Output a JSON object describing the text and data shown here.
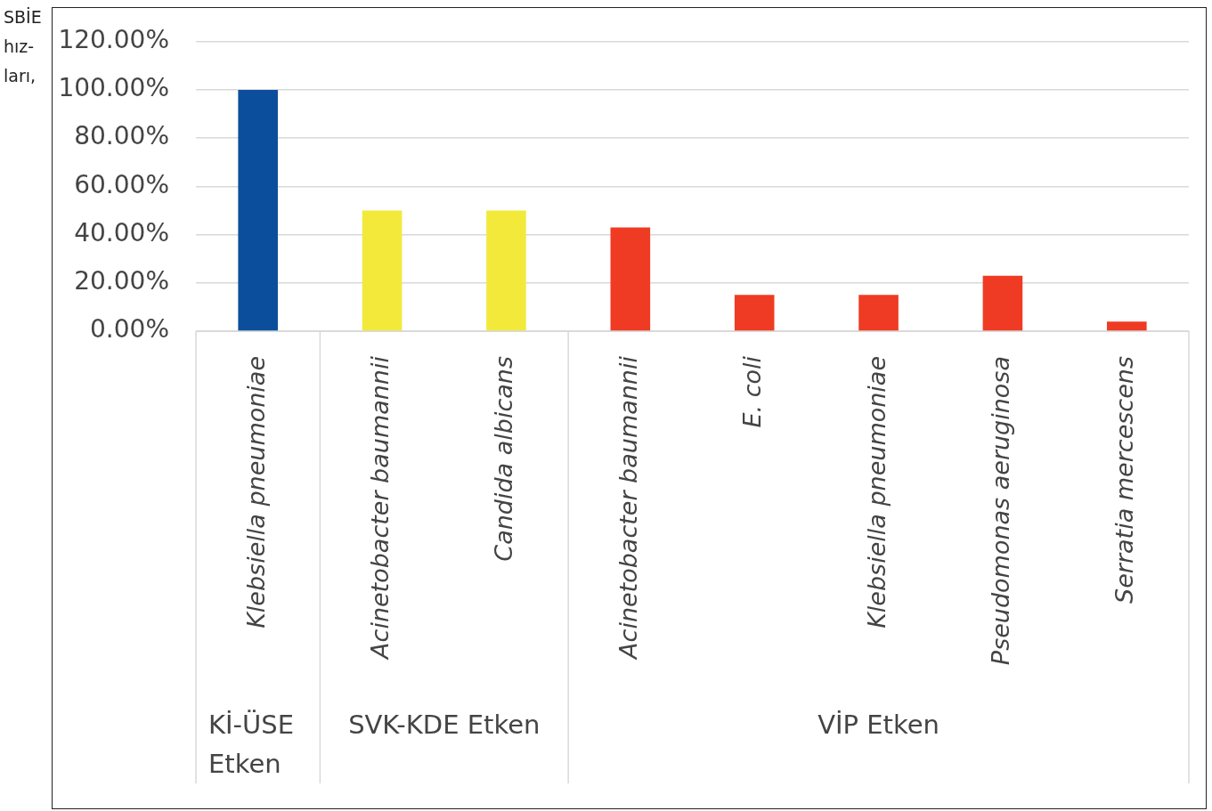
{
  "chart_data": {
    "type": "bar",
    "categories": [
      "Klebsiella pneumoniae",
      "Acinetobacter baumannii",
      "Candida albicans",
      "Acinetobacter baumannii",
      "E. coli",
      "Klebsiella pneumoniae",
      "Pseudomonas aeruginosa",
      "Serratia mercescens"
    ],
    "values": [
      100,
      50,
      50,
      43,
      15,
      15,
      23,
      4
    ],
    "colors": [
      "#0b4f9c",
      "#f2e93b",
      "#f2e93b",
      "#ef3b23",
      "#ef3b23",
      "#ef3b23",
      "#ef3b23",
      "#ef3b23"
    ],
    "ylim": [
      0,
      120
    ],
    "yticks": [
      {
        "value": 0,
        "label": "0.00%"
      },
      {
        "value": 20,
        "label": "20.00%"
      },
      {
        "value": 40,
        "label": "40.00%"
      },
      {
        "value": 60,
        "label": "60.00%"
      },
      {
        "value": 80,
        "label": "80.00%"
      },
      {
        "value": 100,
        "label": "100.00%"
      },
      {
        "value": 120,
        "label": "120.00%"
      }
    ],
    "grid": "y",
    "legend": false,
    "annotations": [
      "SBİE",
      "hız-",
      "ları,",
      "Kİ-ÜSE Etken",
      "SVK-KDE Etken",
      "VİP Etken"
    ]
  }
}
